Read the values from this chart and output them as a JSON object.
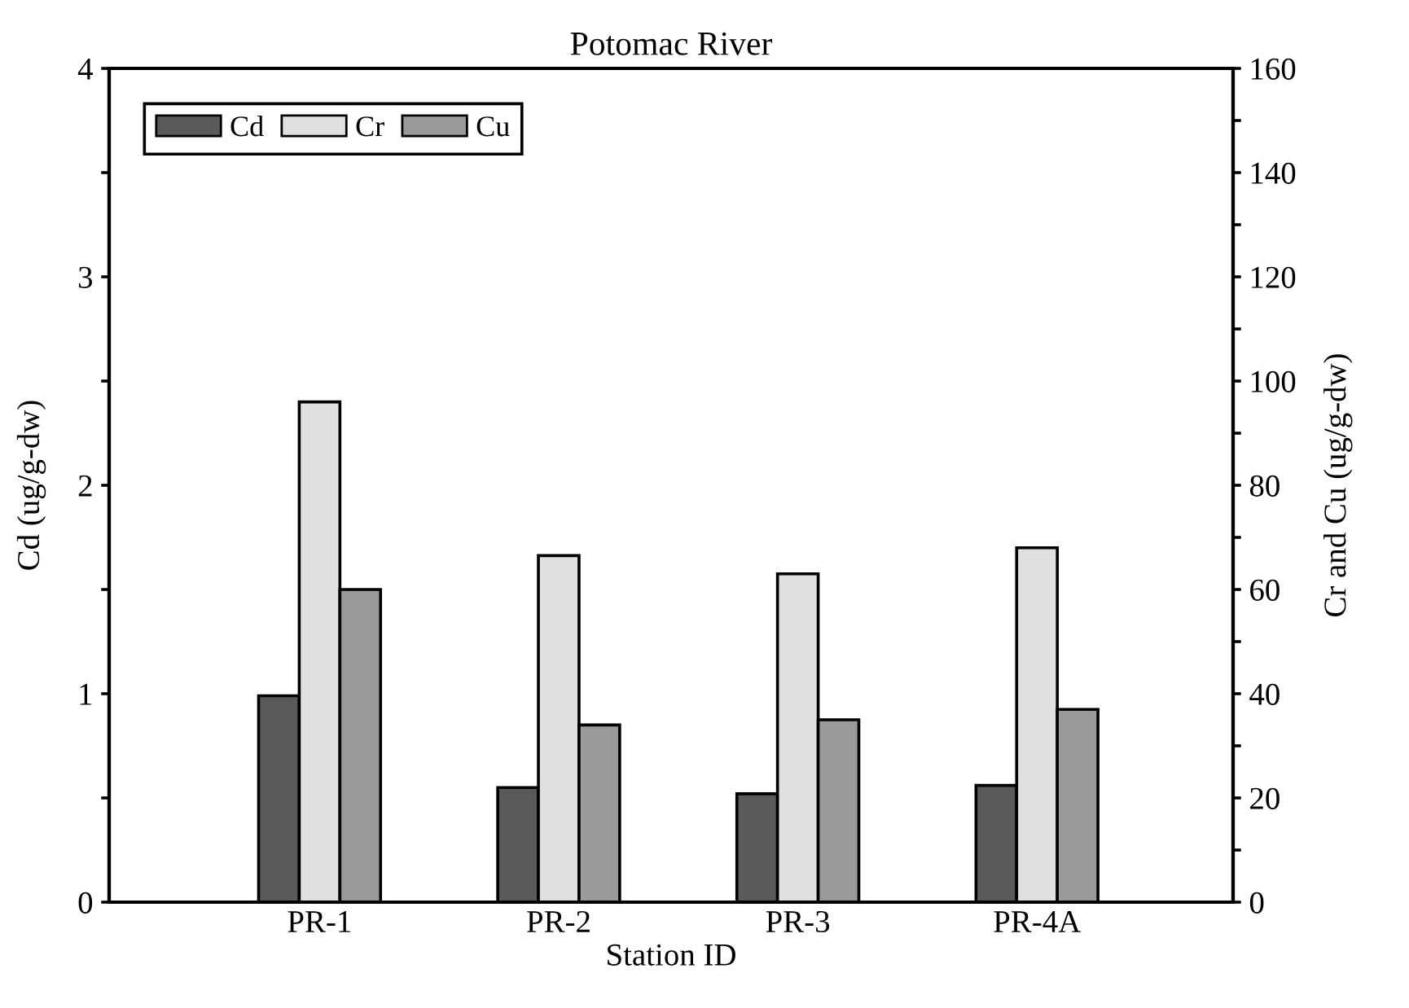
{
  "chart_data": {
    "type": "bar",
    "title": "Potomac River",
    "xlabel": "Station ID",
    "ylabel": "Cd (ug/g-dw)",
    "y2label": "Cr and Cu (ug/g-dw)",
    "categories": [
      "PR-1",
      "PR-2",
      "PR-3",
      "PR-4A"
    ],
    "series": [
      {
        "name": "Cd",
        "color": "#5a5a5a",
        "values": [
          0.99,
          0.55,
          0.52,
          0.56
        ]
      },
      {
        "name": "Cr",
        "color": "#e0e0e0",
        "axis": "y2",
        "values": [
          96,
          66.5,
          63,
          68
        ]
      },
      {
        "name": "Cu",
        "color": "#9a9a9a",
        "axis": "y2",
        "values": [
          60,
          34,
          35,
          37
        ]
      }
    ],
    "ylim": [
      0,
      4
    ],
    "yticks": [
      0,
      {
        "value": 0.5,
        "label": null
      },
      1,
      {
        "value": 1.5,
        "label": null
      },
      2,
      {
        "value": 2.5,
        "label": null
      },
      3,
      {
        "value": 3.5,
        "label": null
      },
      4
    ],
    "y2lim": [
      0,
      160
    ],
    "y2ticks": [
      0,
      {
        "value": 10,
        "label": null
      },
      20,
      {
        "value": 30,
        "label": null
      },
      40,
      {
        "value": 50,
        "label": null
      },
      60,
      {
        "value": 70,
        "label": null
      },
      80,
      {
        "value": 90,
        "label": null
      },
      100,
      {
        "value": 110,
        "label": null
      },
      120,
      {
        "value": 130,
        "label": null
      },
      140,
      {
        "value": 150,
        "label": null
      },
      160
    ],
    "legend": "top left",
    "grid": false
  }
}
